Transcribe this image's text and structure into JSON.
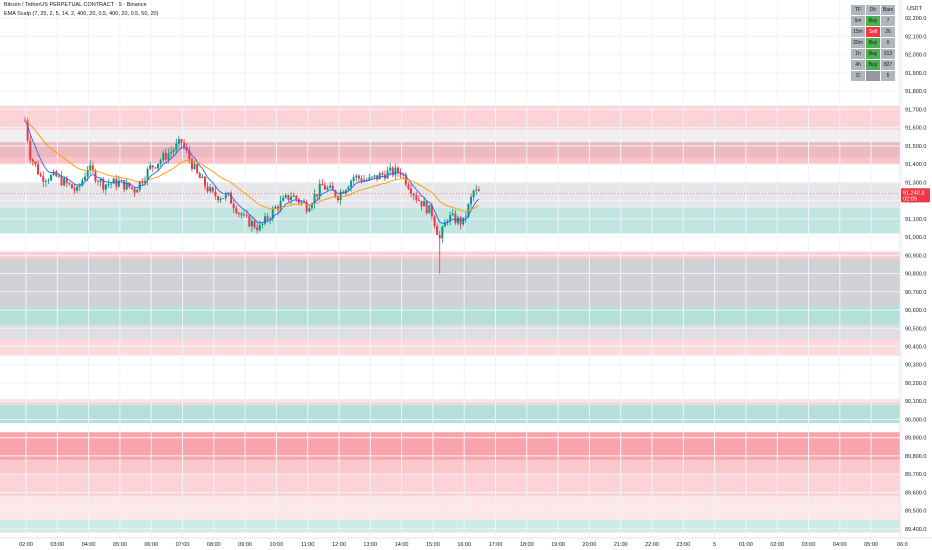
{
  "header": {
    "title": "Bitcoin / TetherUS PERPETUAL CONTRACT · 5 · Binance",
    "indicator": "EMA Scalp (7, 25, 2, 5, 14, 2, 400, 20, 0.5, 400, 20, 0.5, 50, 20)",
    "currency": "USDT"
  },
  "price_tag": {
    "price": "91,240.3",
    "countdown": "02:09"
  },
  "signals_table": {
    "headers": [
      "TF",
      "Dir",
      "Bars"
    ],
    "rows": [
      {
        "tf": "5m",
        "dir": "Buy",
        "bars": "7"
      },
      {
        "tf": "15m",
        "dir": "Sell",
        "bars": "26"
      },
      {
        "tf": "30m",
        "dir": "Buy",
        "bars": "0"
      },
      {
        "tf": "1h",
        "dir": "Buy",
        "bars": "913"
      },
      {
        "tf": "4h",
        "dir": "Buy",
        "bars": "827"
      },
      {
        "tf": "D",
        "dir": "",
        "bars": "5"
      }
    ]
  },
  "colors": {
    "up": "#089981",
    "down": "#f23645",
    "ema_fast": "#2962ff",
    "ema_slow": "#ff9800",
    "zone_red": "#f23645",
    "zone_green": "#089981",
    "zone_grey": "#787b86"
  },
  "chart_data": {
    "type": "candlestick",
    "yaxis_ticks": [
      "92,200.0",
      "92,100.0",
      "92,000.0",
      "91,900.0",
      "91,800.0",
      "91,700.0",
      "91,600.0",
      "91,500.0",
      "91,400.0",
      "91,300.0",
      "91,200.0",
      "91,100.0",
      "91,000.0",
      "90,900.0",
      "90,800.0",
      "90,700.0",
      "90,600.0",
      "90,500.0",
      "90,400.0",
      "90,300.0",
      "90,200.0",
      "90,100.0",
      "90,000.0",
      "89,900.0",
      "89,800.0",
      "89,700.0",
      "89,600.0",
      "89,500.0",
      "89,400.0"
    ],
    "xaxis_ticks": [
      "02:00",
      "03:00",
      "04:00",
      "05:00",
      "06:00",
      "07:00",
      "08:00",
      "09:00",
      "10:00",
      "11:00",
      "12:00",
      "13:00",
      "14:00",
      "15:00",
      "16:00",
      "17:00",
      "18:00",
      "19:00",
      "20:00",
      "21:00",
      "22:00",
      "23:00",
      "5",
      "01:00",
      "02:00",
      "03:00",
      "04:00",
      "05:00",
      "06:0"
    ],
    "ylim": [
      89350,
      92300
    ],
    "last_price": 91240.3,
    "ohlc_anchors": [
      {
        "t": "01:00",
        "close": 91640
      },
      {
        "t": "01:10",
        "close": 91450
      },
      {
        "t": "01:30",
        "close": 91330
      },
      {
        "t": "02:00",
        "close": 91330
      },
      {
        "t": "02:40",
        "close": 91250
      },
      {
        "t": "03:00",
        "close": 91380
      },
      {
        "t": "03:30",
        "close": 91290
      },
      {
        "t": "04:00",
        "close": 91300
      },
      {
        "t": "04:30",
        "close": 91260
      },
      {
        "t": "05:00",
        "close": 91380
      },
      {
        "t": "05:40",
        "close": 91470
      },
      {
        "t": "06:00",
        "close": 91520
      },
      {
        "t": "06:30",
        "close": 91340
      },
      {
        "t": "07:00",
        "close": 91230
      },
      {
        "t": "07:30",
        "close": 91220
      },
      {
        "t": "08:00",
        "close": 91100
      },
      {
        "t": "08:30",
        "close": 91050
      },
      {
        "t": "09:00",
        "close": 91160
      },
      {
        "t": "09:30",
        "close": 91230
      },
      {
        "t": "10:00",
        "close": 91170
      },
      {
        "t": "10:30",
        "close": 91280
      },
      {
        "t": "11:00",
        "close": 91230
      },
      {
        "t": "11:30",
        "close": 91330
      },
      {
        "t": "12:00",
        "close": 91310
      },
      {
        "t": "12:30",
        "close": 91350
      },
      {
        "t": "13:00",
        "close": 91360
      },
      {
        "t": "13:30",
        "close": 91220
      },
      {
        "t": "14:00",
        "close": 91130
      },
      {
        "t": "14:15",
        "close": 90990
      },
      {
        "t": "14:30",
        "close": 91110
      },
      {
        "t": "15:00",
        "close": 91080
      },
      {
        "t": "15:20",
        "close": 91250
      },
      {
        "t": "15:30",
        "close": 91240.3
      }
    ],
    "zones": [
      {
        "from": 91590,
        "to": 91720,
        "color": "zone_red",
        "opacity": 0.22
      },
      {
        "from": 91400,
        "to": 91520,
        "color": "zone_red",
        "opacity": 0.3
      },
      {
        "from": 91440,
        "to": 91590,
        "color": "zone_grey",
        "opacity": 0.12
      },
      {
        "from": 91160,
        "to": 91300,
        "color": "zone_grey",
        "opacity": 0.18
      },
      {
        "from": 91020,
        "to": 91160,
        "color": "zone_green",
        "opacity": 0.25
      },
      {
        "from": 90880,
        "to": 90920,
        "color": "zone_red",
        "opacity": 0.25
      },
      {
        "from": 90620,
        "to": 90880,
        "color": "zone_grey",
        "opacity": 0.35
      },
      {
        "from": 90520,
        "to": 90620,
        "color": "zone_green",
        "opacity": 0.3
      },
      {
        "from": 90440,
        "to": 90520,
        "color": "zone_grey",
        "opacity": 0.25
      },
      {
        "from": 90350,
        "to": 90440,
        "color": "zone_red",
        "opacity": 0.18
      },
      {
        "from": 90080,
        "to": 90110,
        "color": "zone_red",
        "opacity": 0.2
      },
      {
        "from": 89980,
        "to": 90080,
        "color": "zone_green",
        "opacity": 0.3
      },
      {
        "from": 89780,
        "to": 89930,
        "color": "zone_red",
        "opacity": 0.45
      },
      {
        "from": 89700,
        "to": 89780,
        "color": "zone_red",
        "opacity": 0.28
      },
      {
        "from": 89580,
        "to": 89700,
        "color": "zone_red",
        "opacity": 0.22
      },
      {
        "from": 89450,
        "to": 89580,
        "color": "zone_red",
        "opacity": 0.12
      },
      {
        "from": 89380,
        "to": 89450,
        "color": "zone_green",
        "opacity": 0.2
      }
    ]
  }
}
